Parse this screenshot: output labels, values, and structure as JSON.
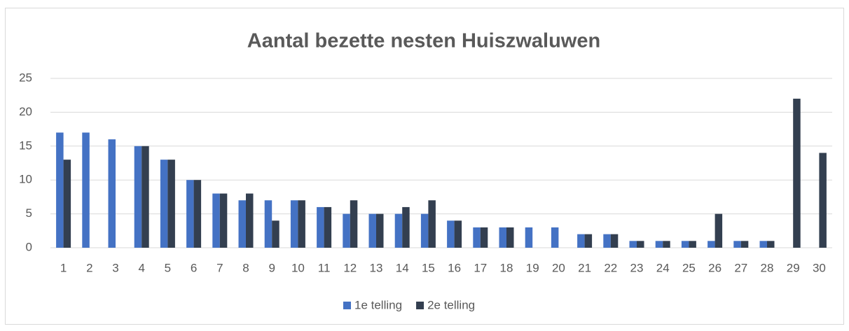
{
  "chart_data": {
    "type": "bar",
    "title": "Aantal bezette nesten Huiszwaluwen",
    "categories": [
      "1",
      "2",
      "3",
      "4",
      "5",
      "6",
      "7",
      "8",
      "9",
      "10",
      "11",
      "12",
      "13",
      "14",
      "15",
      "16",
      "17",
      "18",
      "19",
      "20",
      "21",
      "22",
      "23",
      "24",
      "25",
      "26",
      "27",
      "28",
      "29",
      "30"
    ],
    "series": [
      {
        "name": "1e telling",
        "color": "#4472c4",
        "values": [
          17,
          17,
          16,
          15,
          13,
          10,
          8,
          7,
          7,
          7,
          6,
          5,
          5,
          5,
          5,
          4,
          3,
          3,
          3,
          3,
          2,
          2,
          1,
          1,
          1,
          1,
          1,
          1,
          0,
          0
        ]
      },
      {
        "name": "2e telling",
        "color": "#333f50",
        "values": [
          13,
          0,
          0,
          15,
          13,
          10,
          8,
          8,
          4,
          7,
          6,
          7,
          5,
          6,
          7,
          4,
          3,
          3,
          0,
          0,
          2,
          2,
          1,
          1,
          1,
          5,
          1,
          1,
          22,
          14
        ]
      }
    ],
    "ylim": [
      0,
      25
    ],
    "yticks": [
      0,
      5,
      10,
      15,
      20,
      25
    ],
    "grid": true,
    "legend": "bottom"
  }
}
